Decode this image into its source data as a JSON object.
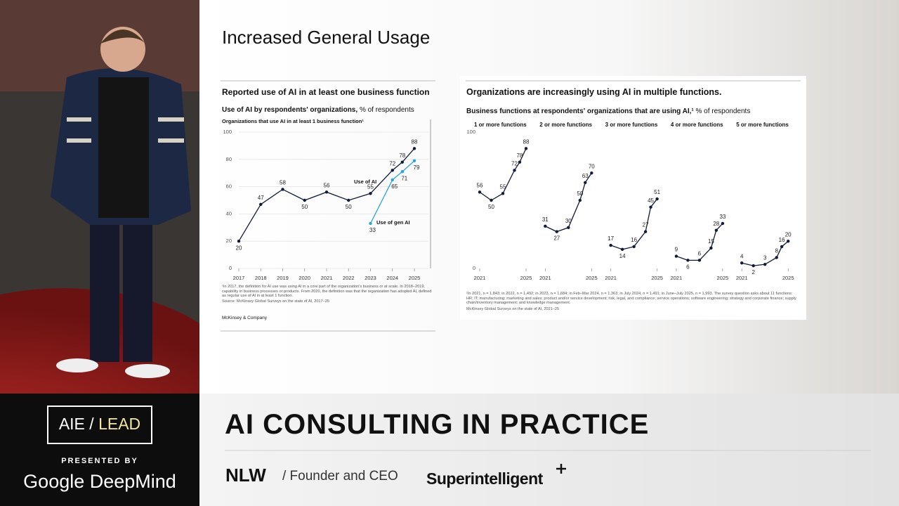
{
  "video": {
    "logo": {
      "left": "AIE",
      "separator": "/",
      "right": "LEAD"
    },
    "presented_by": "PRESENTED BY",
    "sponsor": "Google DeepMind"
  },
  "slide": {
    "title": "Increased General Usage",
    "left_panel": {
      "footnote": "¹In 2017, the definition for AI use was using AI in a core part of the organization's business or at scale. In 2018–2019, capability in business processes or products. From 2020, the definition was that the organization has adopted AI, defined as regular use of AI in at least 1 function.",
      "source": "Source: McKinsey Global Surveys on the state of AI, 2017–25",
      "brand": "McKinsey & Company"
    },
    "right_panel": {
      "title": "Organizations are increasingly using AI in multiple functions.",
      "subtitle": "Business functions at respondents' organizations that are using AI,¹",
      "unit": "% of respondents",
      "footnote": "¹In 2021, n = 1,843; in 2022, n = 1,492; in 2023, n = 1,684; in Feb–Mar 2024, n = 1,363; in July 2024, n = 1,491; in June–July 2025, n = 1,993. The survey question asks about 11 functions: HR; IT; manufacturing; marketing and sales; product and/or service development; risk, legal, and compliance; service operations; software engineering; strategy and corporate finance; supply chain/inventory management; and knowledge management.",
      "source": "McKinsey Global Surveys on the state of AI, 2021–25"
    }
  },
  "lower_third": {
    "title": "AI CONSULTING IN PRACTICE",
    "name": "NLW",
    "role": "/ Founder and CEO",
    "company": "Superintelligent"
  },
  "chart_data": [
    {
      "type": "line",
      "title": "Reported use of AI in at least one business function",
      "subtitle": "Use of AI by respondents' organizations,",
      "unit": "% of respondents",
      "axis_title": "Organizations that use AI in at least 1 business function¹",
      "x": [
        2017,
        2018,
        2019,
        2020,
        2021,
        2022,
        2023,
        2024,
        2024.45,
        2025
      ],
      "xlim": [
        2017,
        2025
      ],
      "xticks": [
        2017,
        2018,
        2019,
        2020,
        2021,
        2022,
        2023,
        2024,
        2025
      ],
      "ylim": [
        0,
        100
      ],
      "yticks": [
        0,
        20,
        40,
        60,
        80,
        100
      ],
      "grid": true,
      "series": [
        {
          "name": "Use of AI",
          "color": "#111a3a",
          "values": [
            20,
            47,
            58,
            50,
            56,
            50,
            55,
            72,
            78,
            88
          ]
        },
        {
          "name": "Use of gen AI",
          "color": "#2aa6d8",
          "values": [
            null,
            null,
            null,
            null,
            null,
            null,
            33,
            65,
            71,
            79
          ]
        }
      ]
    },
    {
      "type": "line",
      "title": "1 or more functions",
      "x": [
        2021,
        2022,
        2023,
        2024,
        2024.45,
        2025
      ],
      "xlim": [
        2021,
        2025
      ],
      "xticks": [
        2021,
        2025
      ],
      "ylim": [
        0,
        100
      ],
      "yticks": [
        0,
        100
      ],
      "series": [
        {
          "color": "#111a3a",
          "values": [
            56,
            50,
            55,
            72,
            78,
            88
          ]
        }
      ]
    },
    {
      "type": "line",
      "title": "2 or more functions",
      "x": [
        2021,
        2022,
        2023,
        2024,
        2024.45,
        2025
      ],
      "xlim": [
        2021,
        2025
      ],
      "xticks": [
        2021,
        2025
      ],
      "ylim": [
        0,
        100
      ],
      "series": [
        {
          "color": "#111a3a",
          "values": [
            31,
            27,
            30,
            50,
            63,
            70
          ]
        }
      ]
    },
    {
      "type": "line",
      "title": "3 or more functions",
      "x": [
        2021,
        2022,
        2023,
        2024,
        2024.45,
        2025
      ],
      "xlim": [
        2021,
        2025
      ],
      "xticks": [
        2021,
        2025
      ],
      "ylim": [
        0,
        100
      ],
      "series": [
        {
          "color": "#111a3a",
          "values": [
            17,
            14,
            16,
            27,
            45,
            51
          ]
        }
      ]
    },
    {
      "type": "line",
      "title": "4 or more functions",
      "x": [
        2021,
        2022,
        2023,
        2024,
        2024.45,
        2025
      ],
      "xlim": [
        2021,
        2025
      ],
      "xticks": [
        2021,
        2025
      ],
      "ylim": [
        0,
        100
      ],
      "series": [
        {
          "color": "#111a3a",
          "values": [
            9,
            6,
            6,
            15,
            28,
            33
          ]
        }
      ]
    },
    {
      "type": "line",
      "title": "5 or more functions",
      "x": [
        2021,
        2022,
        2023,
        2024,
        2024.45,
        2025
      ],
      "xlim": [
        2021,
        2025
      ],
      "xticks": [
        2021,
        2025
      ],
      "ylim": [
        0,
        100
      ],
      "series": [
        {
          "color": "#111a3a",
          "values": [
            4,
            2,
            3,
            8,
            16,
            20
          ]
        }
      ]
    }
  ]
}
